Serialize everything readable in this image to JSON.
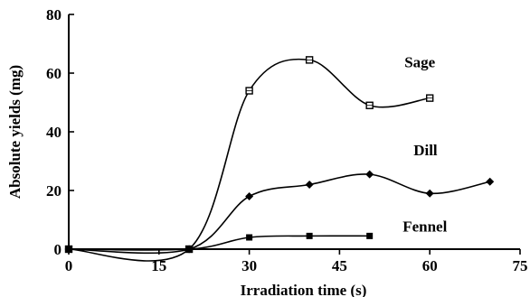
{
  "chart_data": {
    "type": "line",
    "title": "",
    "xlabel": "Irradiation time (s)",
    "ylabel": "Absolute yields (mg)",
    "xlim": [
      0,
      75
    ],
    "ylim": [
      0,
      80
    ],
    "x_ticks": [
      0,
      15,
      30,
      45,
      60,
      75
    ],
    "y_ticks": [
      0,
      20,
      40,
      60,
      80
    ],
    "grid": false,
    "legend": "inline-labels",
    "series": [
      {
        "name": "Sage",
        "marker": "square-open",
        "x": [
          0,
          20,
          30,
          40,
          50,
          60
        ],
        "y": [
          0,
          0,
          54,
          64.5,
          49,
          51.5
        ]
      },
      {
        "name": "Dill",
        "marker": "diamond-filled",
        "x": [
          0,
          20,
          30,
          40,
          50,
          60,
          70
        ],
        "y": [
          0,
          0,
          18,
          22,
          25.5,
          19,
          23
        ]
      },
      {
        "name": "Fennel",
        "marker": "square-filled",
        "x": [
          0,
          20,
          30,
          40,
          50
        ],
        "y": [
          0,
          0,
          4,
          4.5,
          4.5
        ]
      }
    ]
  }
}
